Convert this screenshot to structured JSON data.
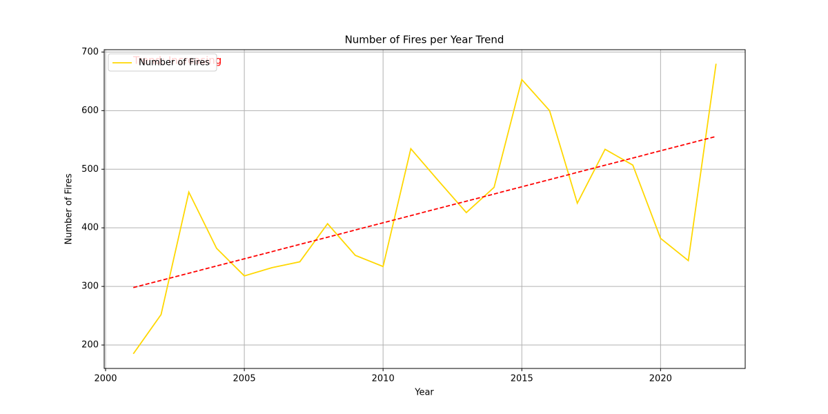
{
  "chart_data": {
    "type": "line",
    "title": "Number of Fires per Year Trend",
    "xlabel": "Year",
    "ylabel": "Number of Fires",
    "x": [
      2001,
      2002,
      2003,
      2004,
      2005,
      2006,
      2007,
      2008,
      2009,
      2010,
      2011,
      2012,
      2013,
      2014,
      2015,
      2016,
      2017,
      2018,
      2019,
      2020,
      2021,
      2022
    ],
    "series": [
      {
        "name": "Number of Fires",
        "color": "#ffd700",
        "values": [
          185,
          252,
          461,
          365,
          318,
          332,
          342,
          407,
          353,
          334,
          535,
          480,
          426,
          469,
          653,
          600,
          442,
          534,
          507,
          382,
          344,
          680
        ]
      }
    ],
    "trend": {
      "x": [
        2001,
        2022
      ],
      "values": [
        298,
        556
      ],
      "color": "#ff0000",
      "dashed": true
    },
    "annotation": {
      "text": "Trend: Increasing",
      "color": "#ff0000"
    },
    "xlim": [
      1999.95,
      2023.05
    ],
    "xticks": [
      2000,
      2005,
      2010,
      2015,
      2020
    ],
    "ylim": [
      160,
      704
    ],
    "yticks": [
      200,
      300,
      400,
      500,
      600,
      700
    ],
    "grid": true,
    "legend": "upper left"
  }
}
